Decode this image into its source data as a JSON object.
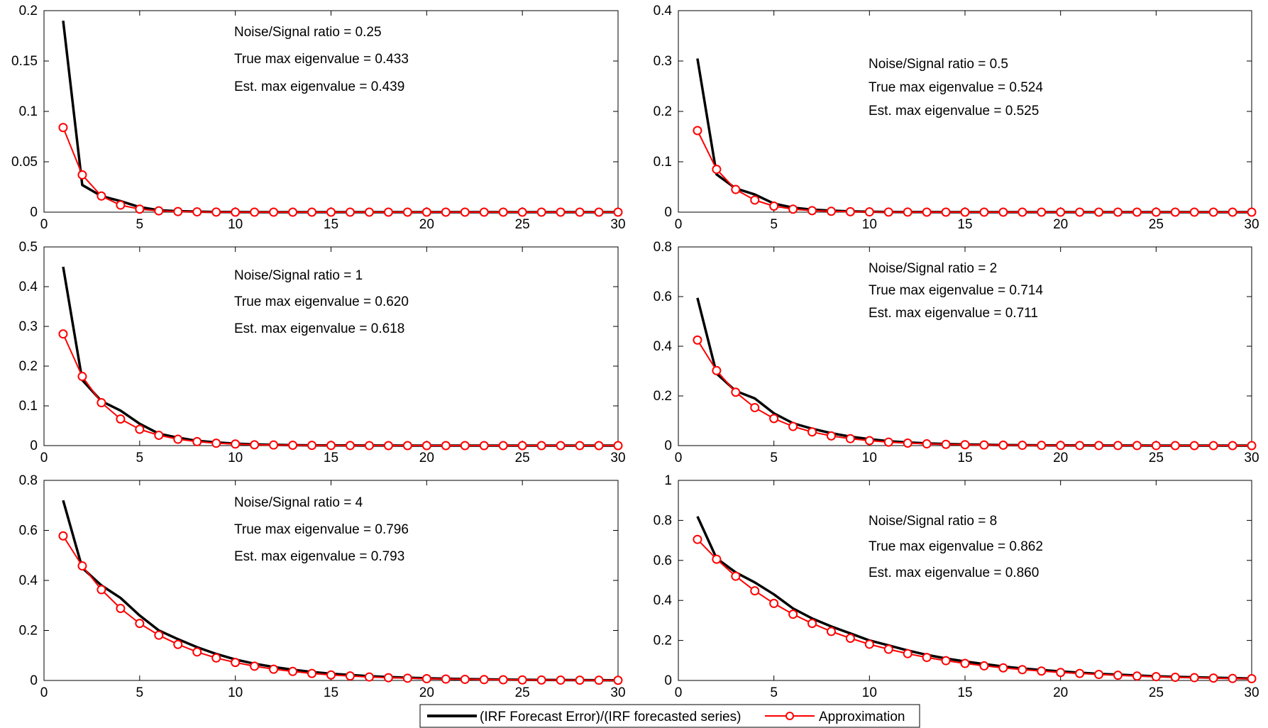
{
  "legend": {
    "entries": [
      {
        "label": "(IRF Forecast Error)/(IRF forecasted series)",
        "color": "#000000"
      },
      {
        "label": "Approximation",
        "color": "#ff0000"
      }
    ]
  },
  "chart_data": [
    {
      "type": "line",
      "x": [
        1,
        2,
        3,
        4,
        5,
        6,
        7,
        8,
        9,
        10,
        11,
        12,
        13,
        14,
        15,
        16,
        17,
        18,
        19,
        20,
        21,
        22,
        23,
        24,
        25,
        26,
        27,
        28,
        29,
        30
      ],
      "xlim": [
        0,
        30
      ],
      "ylim": [
        0,
        0.2
      ],
      "xticks": [
        "0",
        "5",
        "10",
        "15",
        "20",
        "25",
        "30"
      ],
      "yticks": [
        "0",
        "0.05",
        "0.1",
        "0.15",
        "0.2"
      ],
      "annotations": [
        "Noise/Signal ratio = 0.25",
        "True max eigenvalue = 0.433",
        "Est. max eigenvalue = 0.439"
      ],
      "series": [
        {
          "name": "(IRF Forecast Error)/(IRF forecasted series)",
          "color": "#000000",
          "values": [
            0.19,
            0.027,
            0.016,
            0.011,
            0.005,
            0.002,
            0.001,
            0.0005,
            0.0002,
            0.0001,
            0,
            0,
            0,
            0,
            0,
            0,
            0,
            0,
            0,
            0,
            0,
            0,
            0,
            0,
            0,
            0,
            0,
            0,
            0,
            0
          ]
        },
        {
          "name": "Approximation",
          "color": "#ff0000",
          "values": [
            0.084,
            0.037,
            0.016,
            0.007,
            0.003,
            0.0013,
            0.0006,
            0.0003,
            0.0001,
            0,
            0,
            0,
            0,
            0,
            0,
            0,
            0,
            0,
            0,
            0,
            0,
            0,
            0,
            0,
            0,
            0,
            0,
            0,
            0,
            0
          ]
        }
      ]
    },
    {
      "type": "line",
      "x": [
        1,
        2,
        3,
        4,
        5,
        6,
        7,
        8,
        9,
        10,
        11,
        12,
        13,
        14,
        15,
        16,
        17,
        18,
        19,
        20,
        21,
        22,
        23,
        24,
        25,
        26,
        27,
        28,
        29,
        30
      ],
      "xlim": [
        0,
        30
      ],
      "ylim": [
        0,
        0.4
      ],
      "xticks": [
        "0",
        "5",
        "10",
        "15",
        "20",
        "25",
        "30"
      ],
      "yticks": [
        "0",
        "0.1",
        "0.2",
        "0.3",
        "0.4"
      ],
      "annotations": [
        "Noise/Signal ratio = 0.5",
        "True max eigenvalue = 0.524",
        "Est. max eigenvalue = 0.525"
      ],
      "series": [
        {
          "name": "(IRF Forecast Error)/(IRF forecasted series)",
          "color": "#000000",
          "values": [
            0.305,
            0.075,
            0.047,
            0.035,
            0.017,
            0.009,
            0.005,
            0.003,
            0.0015,
            0.0008,
            0.0004,
            0.0002,
            0.0001,
            0,
            0,
            0,
            0,
            0,
            0,
            0,
            0,
            0,
            0,
            0,
            0,
            0,
            0,
            0,
            0,
            0
          ]
        },
        {
          "name": "Approximation",
          "color": "#ff0000",
          "values": [
            0.162,
            0.085,
            0.045,
            0.024,
            0.012,
            0.006,
            0.003,
            0.0017,
            0.0009,
            0.0005,
            0.0002,
            0.0001,
            0,
            0,
            0,
            0,
            0,
            0,
            0,
            0,
            0,
            0,
            0,
            0,
            0,
            0,
            0,
            0,
            0,
            0
          ]
        }
      ]
    },
    {
      "type": "line",
      "x": [
        1,
        2,
        3,
        4,
        5,
        6,
        7,
        8,
        9,
        10,
        11,
        12,
        13,
        14,
        15,
        16,
        17,
        18,
        19,
        20,
        21,
        22,
        23,
        24,
        25,
        26,
        27,
        28,
        29,
        30
      ],
      "xlim": [
        0,
        30
      ],
      "ylim": [
        0,
        0.5
      ],
      "xticks": [
        "0",
        "5",
        "10",
        "15",
        "20",
        "25",
        "30"
      ],
      "yticks": [
        "0",
        "0.1",
        "0.2",
        "0.3",
        "0.4",
        "0.5"
      ],
      "annotations": [
        "Noise/Signal ratio = 1",
        "True max eigenvalue = 0.620",
        "Est. max eigenvalue = 0.618"
      ],
      "series": [
        {
          "name": "(IRF Forecast Error)/(IRF forecasted series)",
          "color": "#000000",
          "values": [
            0.45,
            0.165,
            0.112,
            0.088,
            0.055,
            0.03,
            0.02,
            0.012,
            0.008,
            0.005,
            0.003,
            0.002,
            0.001,
            0.0007,
            0.0004,
            0.0003,
            0.0002,
            0.0001,
            0,
            0,
            0,
            0,
            0,
            0,
            0,
            0,
            0,
            0,
            0,
            0
          ]
        },
        {
          "name": "Approximation",
          "color": "#ff0000",
          "values": [
            0.281,
            0.174,
            0.108,
            0.067,
            0.041,
            0.026,
            0.016,
            0.01,
            0.006,
            0.004,
            0.002,
            0.0015,
            0.0009,
            0.0006,
            0.0004,
            0.0002,
            0.0001,
            0,
            0,
            0,
            0,
            0,
            0,
            0,
            0,
            0,
            0,
            0,
            0,
            0
          ]
        }
      ]
    },
    {
      "type": "line",
      "x": [
        1,
        2,
        3,
        4,
        5,
        6,
        7,
        8,
        9,
        10,
        11,
        12,
        13,
        14,
        15,
        16,
        17,
        18,
        19,
        20,
        21,
        22,
        23,
        24,
        25,
        26,
        27,
        28,
        29,
        30
      ],
      "xlim": [
        0,
        30
      ],
      "ylim": [
        0,
        0.8
      ],
      "xticks": [
        "0",
        "5",
        "10",
        "15",
        "20",
        "25",
        "30"
      ],
      "yticks": [
        "0",
        "0.2",
        "0.4",
        "0.6",
        "0.8"
      ],
      "annotations": [
        "Noise/Signal ratio = 2",
        "True max eigenvalue = 0.714",
        "Est. max eigenvalue = 0.711"
      ],
      "series": [
        {
          "name": "(IRF Forecast Error)/(IRF forecasted series)",
          "color": "#000000",
          "values": [
            0.595,
            0.29,
            0.22,
            0.19,
            0.13,
            0.09,
            0.068,
            0.05,
            0.036,
            0.026,
            0.018,
            0.013,
            0.009,
            0.0065,
            0.0046,
            0.0033,
            0.0023,
            0.0017,
            0.0012,
            0.0008,
            0.0006,
            0.0004,
            0.0003,
            0.0002,
            0.0001,
            0,
            0,
            0,
            0,
            0
          ]
        },
        {
          "name": "Approximation",
          "color": "#ff0000",
          "values": [
            0.425,
            0.302,
            0.215,
            0.153,
            0.109,
            0.077,
            0.055,
            0.039,
            0.028,
            0.02,
            0.014,
            0.01,
            0.007,
            0.005,
            0.0036,
            0.0025,
            0.0018,
            0.0013,
            0.0009,
            0.0006,
            0.0005,
            0.0003,
            0.0002,
            0.0002,
            0.0001,
            0,
            0,
            0,
            0,
            0
          ]
        }
      ]
    },
    {
      "type": "line",
      "x": [
        1,
        2,
        3,
        4,
        5,
        6,
        7,
        8,
        9,
        10,
        11,
        12,
        13,
        14,
        15,
        16,
        17,
        18,
        19,
        20,
        21,
        22,
        23,
        24,
        25,
        26,
        27,
        28,
        29,
        30
      ],
      "xlim": [
        0,
        30
      ],
      "ylim": [
        0,
        0.8
      ],
      "xticks": [
        "0",
        "5",
        "10",
        "15",
        "20",
        "25",
        "30"
      ],
      "yticks": [
        "0",
        "0.2",
        "0.4",
        "0.6",
        "0.8"
      ],
      "annotations": [
        "Noise/Signal ratio = 4",
        "True max eigenvalue = 0.796",
        "Est. max eigenvalue = 0.793"
      ],
      "series": [
        {
          "name": "(IRF Forecast Error)/(IRF forecasted series)",
          "color": "#000000",
          "values": [
            0.72,
            0.45,
            0.38,
            0.33,
            0.26,
            0.2,
            0.165,
            0.133,
            0.106,
            0.084,
            0.067,
            0.054,
            0.043,
            0.034,
            0.027,
            0.022,
            0.017,
            0.014,
            0.011,
            0.0088,
            0.007,
            0.0056,
            0.0044,
            0.0035,
            0.0028,
            0.0022,
            0.0018,
            0.0014,
            0.0011,
            0.0009
          ]
        },
        {
          "name": "Approximation",
          "color": "#ff0000",
          "values": [
            0.578,
            0.458,
            0.363,
            0.288,
            0.228,
            0.181,
            0.144,
            0.114,
            0.09,
            0.072,
            0.057,
            0.045,
            0.036,
            0.028,
            0.022,
            0.018,
            0.014,
            0.011,
            0.009,
            0.007,
            0.0056,
            0.0044,
            0.0035,
            0.0028,
            0.0022,
            0.0018,
            0.0014,
            0.0011,
            0.0009,
            0.0007
          ]
        }
      ]
    },
    {
      "type": "line",
      "x": [
        1,
        2,
        3,
        4,
        5,
        6,
        7,
        8,
        9,
        10,
        11,
        12,
        13,
        14,
        15,
        16,
        17,
        18,
        19,
        20,
        21,
        22,
        23,
        24,
        25,
        26,
        27,
        28,
        29,
        30
      ],
      "xlim": [
        0,
        30
      ],
      "ylim": [
        0,
        1
      ],
      "xticks": [
        "0",
        "5",
        "10",
        "15",
        "20",
        "25",
        "30"
      ],
      "yticks": [
        "0",
        "0.2",
        "0.4",
        "0.6",
        "0.8",
        "1"
      ],
      "annotations": [
        "Noise/Signal ratio = 8",
        "True max eigenvalue = 0.862",
        "Est. max eigenvalue = 0.860"
      ],
      "series": [
        {
          "name": "(IRF Forecast Error)/(IRF forecasted series)",
          "color": "#000000",
          "values": [
            0.82,
            0.61,
            0.54,
            0.49,
            0.43,
            0.36,
            0.31,
            0.27,
            0.235,
            0.2,
            0.175,
            0.15,
            0.128,
            0.11,
            0.095,
            0.082,
            0.07,
            0.06,
            0.052,
            0.045,
            0.039,
            0.033,
            0.029,
            0.025,
            0.021,
            0.018,
            0.016,
            0.014,
            0.012,
            0.01
          ]
        },
        {
          "name": "Approximation",
          "color": "#ff0000",
          "values": [
            0.705,
            0.606,
            0.521,
            0.448,
            0.385,
            0.331,
            0.285,
            0.245,
            0.211,
            0.181,
            0.156,
            0.134,
            0.115,
            0.099,
            0.085,
            0.073,
            0.063,
            0.054,
            0.047,
            0.04,
            0.035,
            0.03,
            0.026,
            0.022,
            0.019,
            0.016,
            0.014,
            0.012,
            0.01,
            0.009
          ]
        }
      ]
    }
  ]
}
